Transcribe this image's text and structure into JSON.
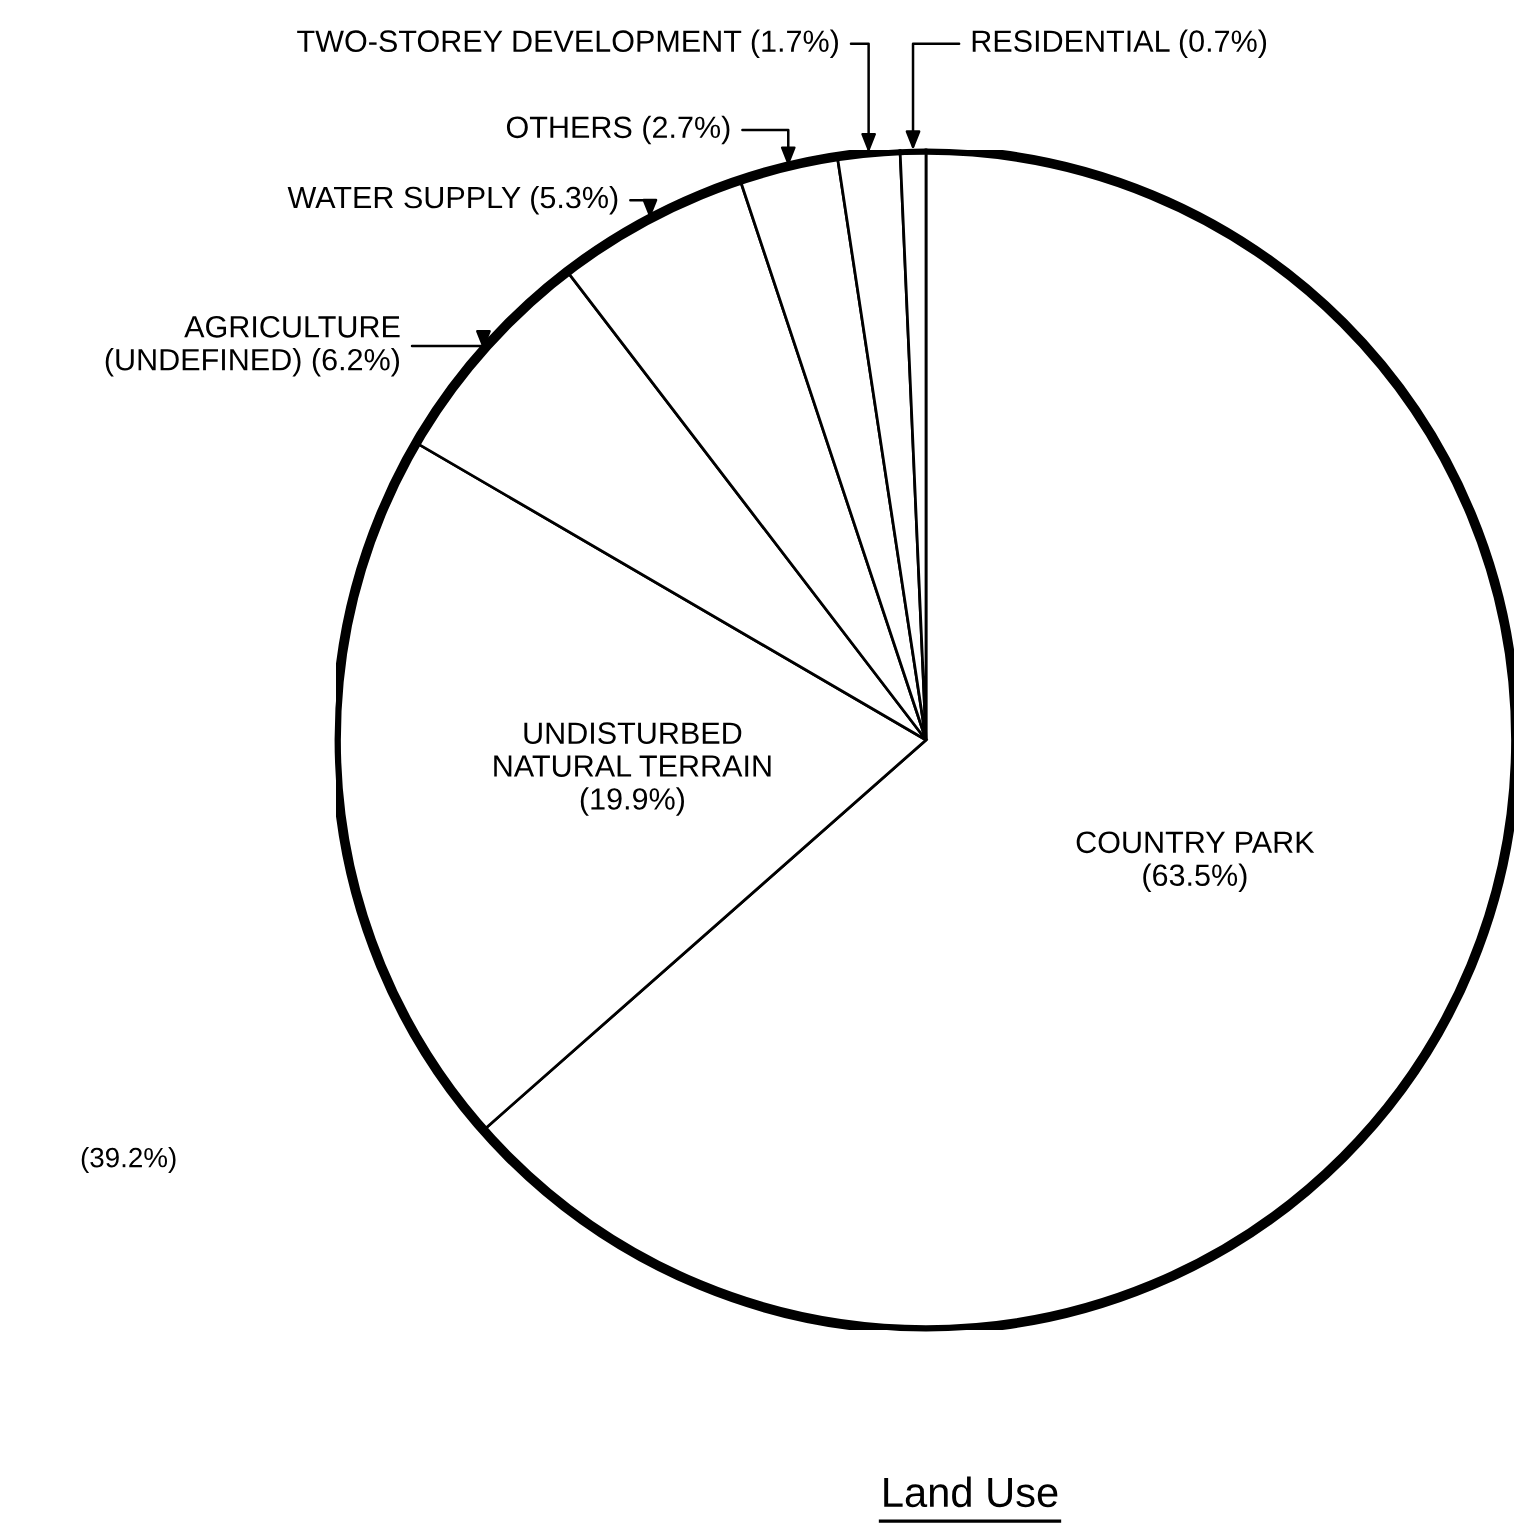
{
  "chart_data": {
    "type": "pie",
    "title": "Land Use",
    "categories": [
      "COUNTRY PARK",
      "UNDISTURBED\nNATURAL TERRAIN",
      "AGRICULTURE\n(UNDEFINED)",
      "WATER SUPPLY",
      "OTHERS",
      "TWO-STOREY DEVELOPMENT",
      "RESIDENTIAL"
    ],
    "values": [
      63.5,
      19.9,
      6.2,
      5.3,
      2.7,
      1.7,
      0.7
    ],
    "value_labels": [
      "(63.5%)",
      "(19.9%)",
      "(6.2%)",
      "(5.3%)",
      "(2.7%)",
      "(1.7%)",
      "(0.7%)"
    ],
    "colors": [
      "#ffffff",
      "#ffffff",
      "#ffffff",
      "#ffffff",
      "#ffffff",
      "#ffffff",
      "#ffffff"
    ],
    "annotations": [
      "(39.2%)"
    ]
  }
}
